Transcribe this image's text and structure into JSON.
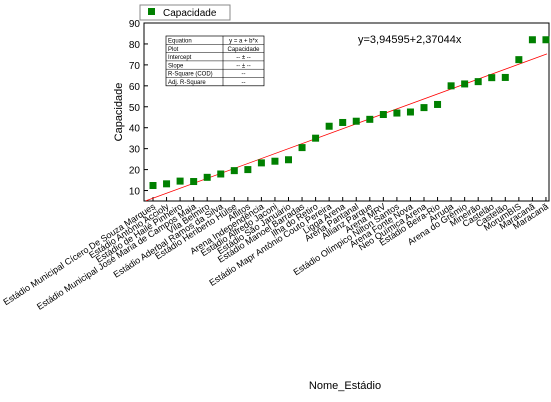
{
  "chart_data": {
    "type": "scatter",
    "title": "",
    "xlabel": "Nome_Estádio",
    "ylabel": "Capacidade",
    "ylim": [
      5,
      90
    ],
    "yticks": [
      10,
      20,
      30,
      40,
      50,
      60,
      70,
      80,
      90
    ],
    "categories": [
      "Estádio Municipal Cícero De Souza Marques",
      "Estádio Antônio Accioly",
      "Estádio de Hailé Pinheiro",
      "Estádio Municipal José Maria de Campos Maia",
      "Vila Belmiro",
      "Estádio Aderbal Ramos da Silva",
      "Estádio Heriberto Hülse",
      "Aflitos",
      "Arena Independência",
      "Estádio Alfredo Jaconi",
      "Estádio São Januário",
      "Estádio Manoel Barradas",
      "Ilha do Retiro",
      "Estádio Mapr Antônio Couto Pereira",
      "Ligga Arena",
      "Arena Pantanal",
      "Allianz Parque",
      "Arena MRV",
      "Estádio Olímpico Nilton Santos",
      "Arena Fonte Nova",
      "Neo Química Arena",
      "Estádio Beira-Rio",
      "Arruda",
      "Arena do Grêmio",
      "Mineirão",
      "Castelão",
      "Castelão",
      "MorumBIS",
      "Maracanã",
      "Maracanã"
    ],
    "series": [
      {
        "name": "Capacidade",
        "color": "#008000",
        "marker": "square",
        "values": [
          12.4,
          13.2,
          14.5,
          14.3,
          16.3,
          17.9,
          19.5,
          20,
          23.2,
          24,
          24.7,
          30.5,
          35,
          40.7,
          42.5,
          43.1,
          44,
          46.3,
          47,
          47.5,
          49.6,
          51.1,
          60,
          60.9,
          62,
          63.9,
          64,
          72.5,
          82,
          82
        ]
      }
    ],
    "fit": {
      "equation_label": "y=3,94595+2,37044x",
      "intercept": 3.94595,
      "slope": 2.37044,
      "color": "#ff0000"
    },
    "legend": {
      "label": "Capacidade",
      "placement": "top-left"
    },
    "stats_table": [
      [
        "Equation",
        "y = a + b*x"
      ],
      [
        "Plot",
        "Capacidade"
      ],
      [
        "Intercept",
        "-- ± --"
      ],
      [
        "Slope",
        "-- ± --"
      ],
      [
        "R-Square (COD)",
        "--"
      ],
      [
        "Adj. R-Square",
        "--"
      ]
    ],
    "grid": false
  }
}
